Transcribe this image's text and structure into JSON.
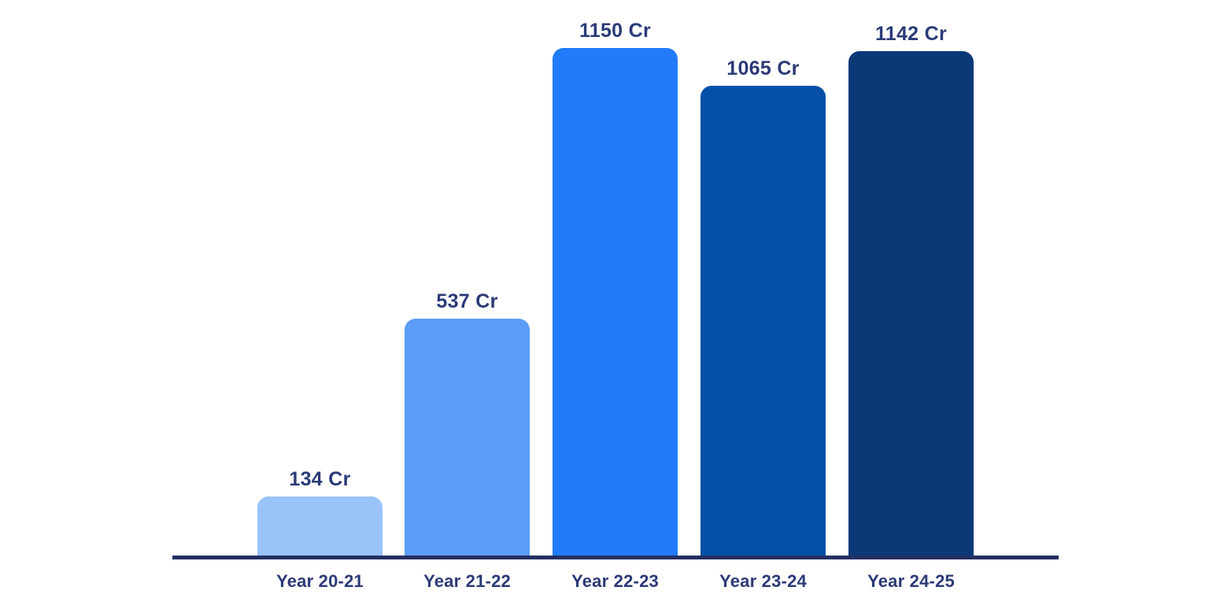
{
  "chart_data": {
    "type": "bar",
    "title": "",
    "xlabel": "",
    "ylabel": "",
    "unit": "Cr",
    "categories": [
      "Year 20-21",
      "Year 21-22",
      "Year 22-23",
      "Year 23-24",
      "Year 24-25"
    ],
    "values": [
      134,
      537,
      1150,
      1065,
      1142
    ],
    "value_labels": [
      "134 Cr",
      "537 Cr",
      "1150 Cr",
      "1065 Cr",
      "1142 Cr"
    ],
    "ylim": [
      0,
      1150
    ],
    "grid": false,
    "legend": false,
    "colors": {
      "bars": [
        "#9AC3FA",
        "#5B9DF8",
        "#217BFB",
        "#0450A8",
        "#0B3877"
      ],
      "axis_line": "#232F63",
      "value_label_text": "#2B3A77",
      "x_label_text": "#2B3A77",
      "background": "#FFFFFF"
    }
  }
}
